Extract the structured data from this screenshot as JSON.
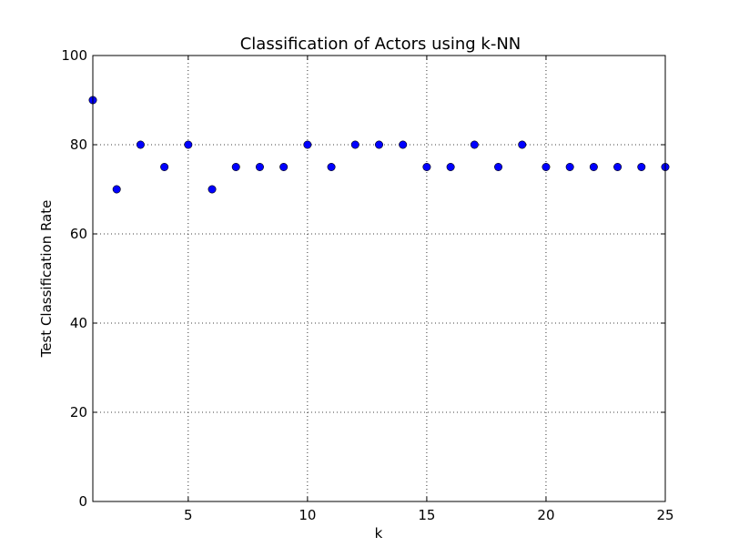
{
  "chart_data": {
    "type": "scatter",
    "title": "Classification of Actors using k-NN",
    "xlabel": "k",
    "ylabel": "Test Classification Rate",
    "xlim": [
      1,
      25
    ],
    "ylim": [
      0,
      100
    ],
    "xticks": [
      5,
      10,
      15,
      20,
      25
    ],
    "yticks": [
      0,
      20,
      40,
      60,
      80,
      100
    ],
    "grid": true,
    "marker_color": "#0000ff",
    "series": [
      {
        "x": [
          1,
          2,
          3,
          4,
          5,
          6,
          7,
          8,
          9,
          10,
          11,
          12,
          13,
          14,
          15,
          16,
          17,
          18,
          19,
          20,
          21,
          22,
          23,
          24,
          25
        ],
        "y": [
          90,
          70,
          80,
          75,
          80,
          70,
          75,
          75,
          75,
          80,
          75,
          80,
          80,
          80,
          75,
          75,
          80,
          75,
          80,
          75,
          75,
          75,
          75,
          75,
          75
        ]
      }
    ]
  }
}
